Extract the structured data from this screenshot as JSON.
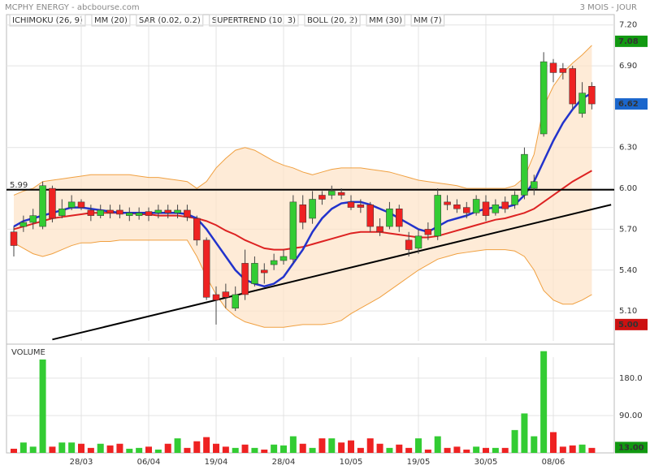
{
  "chart_data": {
    "type": "candlestick",
    "title": "MCPHY ENERGY - abcbourse.com",
    "subtitle": "3 MOIS - JOUR",
    "legend": [
      {
        "name": "ICHIMOKU (26, 9)",
        "color": "#2233cc"
      },
      {
        "name": "MM (20)",
        "color": "#dd2222"
      },
      {
        "name": "SAR (0.02, 0.2)",
        "color": "#dd2222"
      },
      {
        "name": "SUPERTREND (10, 3)",
        "color": "#228822"
      },
      {
        "name": "BOLL (20, 2)",
        "color": "#f0a040"
      },
      {
        "name": "MM (30)",
        "color": "#22cc22"
      },
      {
        "name": "MM (7)",
        "color": "#2233cc"
      }
    ],
    "categories": [
      null,
      null,
      null,
      null,
      null,
      null,
      null,
      "28/03",
      null,
      null,
      null,
      null,
      null,
      null,
      "06/04",
      null,
      null,
      null,
      null,
      null,
      null,
      "19/04",
      null,
      null,
      null,
      null,
      null,
      null,
      "28/04",
      null,
      null,
      null,
      null,
      null,
      null,
      "10/05",
      null,
      null,
      null,
      null,
      null,
      null,
      "19/05",
      null,
      null,
      null,
      null,
      null,
      null,
      "30/05",
      null,
      null,
      null,
      null,
      null,
      null,
      "08/06",
      null,
      null,
      null,
      null
    ],
    "open": [
      5.68,
      5.72,
      5.75,
      5.72,
      6.0,
      5.8,
      5.86,
      5.9,
      5.84,
      5.8,
      5.84,
      5.84,
      5.8,
      5.8,
      5.83,
      5.82,
      5.84,
      5.82,
      5.84,
      5.78,
      5.62,
      5.22,
      5.24,
      5.12,
      5.45,
      5.3,
      5.4,
      5.44,
      5.47,
      5.48,
      5.88,
      5.78,
      5.95,
      5.95,
      5.97,
      5.9,
      5.88,
      5.88,
      5.72,
      5.72,
      5.85,
      5.62,
      5.56,
      5.7,
      5.65,
      5.9,
      5.88,
      5.86,
      5.82,
      5.9,
      5.82,
      5.9,
      5.88,
      5.95,
      6.0,
      6.4,
      6.92,
      6.88,
      6.88,
      6.55,
      6.75
    ],
    "close": [
      5.58,
      5.75,
      5.8,
      6.02,
      5.78,
      5.85,
      5.9,
      5.86,
      5.8,
      5.84,
      5.82,
      5.81,
      5.82,
      5.82,
      5.8,
      5.84,
      5.82,
      5.84,
      5.79,
      5.62,
      5.2,
      5.18,
      5.2,
      5.22,
      5.22,
      5.45,
      5.38,
      5.47,
      5.5,
      5.9,
      5.75,
      5.92,
      5.92,
      5.98,
      5.95,
      5.86,
      5.86,
      5.72,
      5.68,
      5.85,
      5.72,
      5.55,
      5.65,
      5.66,
      5.95,
      5.88,
      5.85,
      5.82,
      5.92,
      5.8,
      5.88,
      5.85,
      5.95,
      6.25,
      6.05,
      6.93,
      6.85,
      6.85,
      6.62,
      6.7,
      6.62
    ],
    "high": [
      5.72,
      5.8,
      5.85,
      6.05,
      6.02,
      5.92,
      5.95,
      5.92,
      5.88,
      5.88,
      5.88,
      5.88,
      5.86,
      5.86,
      5.86,
      5.88,
      5.88,
      5.88,
      5.88,
      5.8,
      5.64,
      5.28,
      5.3,
      5.28,
      5.55,
      5.5,
      5.45,
      5.52,
      5.55,
      5.95,
      5.95,
      5.98,
      5.98,
      6.02,
      6.0,
      5.95,
      5.92,
      5.9,
      5.78,
      5.9,
      5.88,
      5.68,
      5.7,
      5.75,
      6.0,
      5.95,
      5.92,
      5.9,
      5.95,
      5.95,
      5.92,
      5.94,
      5.98,
      6.3,
      6.1,
      7.0,
      6.95,
      6.92,
      6.9,
      6.78,
      6.78
    ],
    "low": [
      5.5,
      5.68,
      5.7,
      5.7,
      5.75,
      5.78,
      5.84,
      5.84,
      5.76,
      5.78,
      5.78,
      5.78,
      5.76,
      5.77,
      5.76,
      5.78,
      5.78,
      5.78,
      5.76,
      5.58,
      5.18,
      5.0,
      5.12,
      5.1,
      5.18,
      5.28,
      5.3,
      5.4,
      5.44,
      5.45,
      5.7,
      5.74,
      5.88,
      5.92,
      5.92,
      5.84,
      5.82,
      5.68,
      5.65,
      5.7,
      5.68,
      5.5,
      5.52,
      5.62,
      5.62,
      5.84,
      5.82,
      5.78,
      5.8,
      5.76,
      5.8,
      5.82,
      5.85,
      5.92,
      5.95,
      6.38,
      6.78,
      6.8,
      6.58,
      6.52,
      6.58
    ],
    "up_color": "#33cc33",
    "down_color": "#ee2222",
    "series": [
      {
        "name": "BOLL upper",
        "color": "#f0a040",
        "values": [
          5.95,
          5.98,
          6.0,
          6.05,
          6.06,
          6.07,
          6.08,
          6.09,
          6.1,
          6.1,
          6.1,
          6.1,
          6.1,
          6.09,
          6.08,
          6.08,
          6.07,
          6.06,
          6.05,
          6.0,
          6.05,
          6.15,
          6.22,
          6.28,
          6.3,
          6.28,
          6.24,
          6.2,
          6.17,
          6.15,
          6.12,
          6.1,
          6.12,
          6.14,
          6.15,
          6.15,
          6.15,
          6.14,
          6.13,
          6.12,
          6.1,
          6.08,
          6.06,
          6.05,
          6.04,
          6.03,
          6.02,
          6.0,
          6.0,
          6.0,
          6.0,
          6.0,
          6.02,
          6.08,
          6.25,
          6.6,
          6.75,
          6.85,
          6.92,
          6.98,
          7.05
        ]
      },
      {
        "name": "BOLL lower",
        "color": "#f0a040",
        "values": [
          5.6,
          5.56,
          5.52,
          5.5,
          5.52,
          5.55,
          5.58,
          5.6,
          5.6,
          5.61,
          5.61,
          5.62,
          5.62,
          5.62,
          5.62,
          5.62,
          5.62,
          5.62,
          5.62,
          5.5,
          5.35,
          5.22,
          5.12,
          5.06,
          5.02,
          5.0,
          4.98,
          4.98,
          4.98,
          4.99,
          5.0,
          5.0,
          5.0,
          5.01,
          5.03,
          5.08,
          5.12,
          5.16,
          5.2,
          5.25,
          5.3,
          5.35,
          5.4,
          5.44,
          5.48,
          5.5,
          5.52,
          5.53,
          5.54,
          5.55,
          5.55,
          5.55,
          5.54,
          5.5,
          5.4,
          5.25,
          5.18,
          5.15,
          5.15,
          5.18,
          5.22
        ]
      },
      {
        "name": "MM (20)",
        "color": "#dd2222",
        "values": [
          5.7,
          5.72,
          5.74,
          5.76,
          5.78,
          5.79,
          5.8,
          5.81,
          5.82,
          5.82,
          5.82,
          5.82,
          5.82,
          5.81,
          5.81,
          5.8,
          5.8,
          5.8,
          5.79,
          5.78,
          5.76,
          5.73,
          5.69,
          5.66,
          5.62,
          5.59,
          5.56,
          5.55,
          5.55,
          5.56,
          5.57,
          5.59,
          5.61,
          5.63,
          5.65,
          5.67,
          5.68,
          5.68,
          5.68,
          5.67,
          5.66,
          5.65,
          5.64,
          5.64,
          5.65,
          5.67,
          5.69,
          5.71,
          5.73,
          5.75,
          5.77,
          5.78,
          5.8,
          5.82,
          5.85,
          5.9,
          5.95,
          6.0,
          6.05,
          6.09,
          6.13
        ]
      },
      {
        "name": "MM (7)",
        "color": "#2233cc",
        "values": [
          5.72,
          5.76,
          5.78,
          5.8,
          5.82,
          5.84,
          5.86,
          5.86,
          5.85,
          5.84,
          5.83,
          5.82,
          5.82,
          5.82,
          5.82,
          5.82,
          5.82,
          5.82,
          5.81,
          5.78,
          5.7,
          5.6,
          5.5,
          5.4,
          5.33,
          5.3,
          5.28,
          5.3,
          5.35,
          5.45,
          5.55,
          5.68,
          5.78,
          5.85,
          5.89,
          5.9,
          5.9,
          5.88,
          5.85,
          5.82,
          5.78,
          5.74,
          5.7,
          5.68,
          5.72,
          5.76,
          5.78,
          5.8,
          5.83,
          5.85,
          5.86,
          5.86,
          5.88,
          5.95,
          6.05,
          6.2,
          6.35,
          6.48,
          6.58,
          6.66,
          6.7
        ]
      }
    ],
    "trendline": {
      "x": [
        4,
        62
      ],
      "values": [
        4.89,
        5.88
      ]
    },
    "hline": {
      "value": 5.99,
      "label": "5.99"
    },
    "ylim": [
      4.88,
      7.27
    ],
    "yticks": [
      {
        "value": 5.1,
        "label": "5.10"
      },
      {
        "value": 5.4,
        "label": "5.40"
      },
      {
        "value": 5.7,
        "label": "5.70"
      },
      {
        "value": 6.0,
        "label": "6.00"
      },
      {
        "value": 6.3,
        "label": "6.30"
      },
      {
        "value": 6.9,
        "label": "6.90"
      },
      {
        "value": 7.2,
        "label": "7.20"
      }
    ],
    "grid": true,
    "flags": [
      {
        "value": 7.08,
        "label": "7.08",
        "color": "#119911"
      },
      {
        "value": 6.62,
        "label": "6.62",
        "color": "#1a66cc"
      },
      {
        "value": 5.0,
        "label": "5.00",
        "color": "#cc1111"
      }
    ],
    "volume": {
      "title": "VOLUME",
      "values": [
        10,
        25,
        15,
        225,
        15,
        25,
        25,
        22,
        12,
        22,
        18,
        22,
        10,
        12,
        15,
        8,
        22,
        35,
        12,
        28,
        38,
        22,
        15,
        12,
        20,
        12,
        8,
        20,
        18,
        40,
        22,
        12,
        35,
        35,
        25,
        30,
        12,
        35,
        22,
        12,
        20,
        12,
        35,
        8,
        40,
        12,
        15,
        8,
        15,
        12,
        12,
        12,
        55,
        95,
        40,
        245,
        50,
        15,
        18,
        20,
        12
      ],
      "ylim": [
        0,
        260
      ],
      "yticks": [
        {
          "value": 90,
          "label": "90.00"
        },
        {
          "value": 180,
          "label": "180.0"
        }
      ],
      "flag": {
        "value": 13,
        "label": "13.00",
        "color": "#119911"
      }
    }
  }
}
